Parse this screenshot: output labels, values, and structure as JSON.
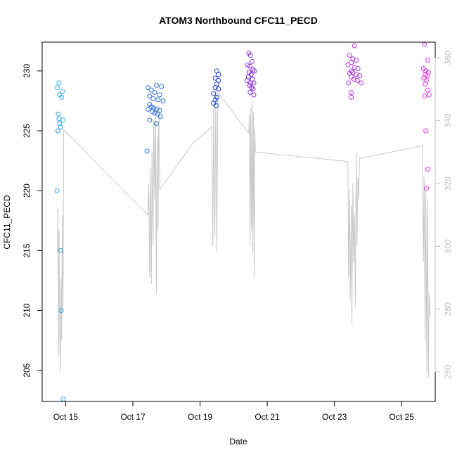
{
  "chart_data": {
    "type": "scatter",
    "title": "ATOM3 Northbound CFC11_PECD",
    "xlabel": "Date",
    "ylabel": "CFC11_PECD",
    "x_ticks": [
      "Oct 15",
      "Oct 17",
      "Oct 19",
      "Oct 21",
      "Oct 23",
      "Oct 25"
    ],
    "x_tick_days": [
      15,
      17,
      19,
      21,
      23,
      25
    ],
    "xlim": [
      14.3,
      26.0
    ],
    "ylim": [
      202.4,
      232.4
    ],
    "y_ticks": [
      205,
      210,
      215,
      220,
      225,
      230
    ],
    "y2lim": [
      250.6,
      365.0
    ],
    "y2_ticks": [
      260,
      280,
      300,
      320,
      340,
      360
    ],
    "line_color": "#c8c8c8",
    "series": [
      {
        "color": "#2fa5f0",
        "points": [
          [
            14.8,
            229.0
          ],
          [
            14.75,
            228.6
          ],
          [
            14.9,
            228.3
          ],
          [
            14.82,
            228.0
          ],
          [
            14.88,
            227.8
          ],
          [
            14.78,
            226.4
          ],
          [
            14.8,
            226.0
          ],
          [
            14.92,
            225.9
          ],
          [
            14.82,
            225.6
          ],
          [
            14.85,
            225.3
          ],
          [
            14.77,
            225.0
          ],
          [
            14.74,
            220.0
          ],
          [
            14.85,
            215.0
          ],
          [
            14.87,
            210.0
          ],
          [
            14.93,
            202.6
          ]
        ]
      },
      {
        "color": "#2e6fe0",
        "points": [
          [
            17.45,
            228.6
          ],
          [
            17.7,
            228.8
          ],
          [
            17.85,
            228.7
          ],
          [
            17.55,
            228.4
          ],
          [
            17.65,
            228.2
          ],
          [
            17.8,
            228.0
          ],
          [
            17.5,
            227.9
          ],
          [
            17.6,
            227.7
          ],
          [
            17.75,
            227.6
          ],
          [
            17.9,
            227.5
          ],
          [
            17.5,
            227.2
          ],
          [
            17.55,
            227.0
          ],
          [
            17.62,
            226.9
          ],
          [
            17.7,
            226.8
          ],
          [
            17.8,
            226.7
          ],
          [
            17.45,
            226.8
          ],
          [
            17.58,
            226.6
          ],
          [
            17.66,
            226.5
          ],
          [
            17.74,
            226.4
          ],
          [
            17.82,
            226.2
          ],
          [
            17.5,
            225.9
          ],
          [
            17.7,
            225.6
          ],
          [
            17.42,
            223.3
          ]
        ]
      },
      {
        "color": "#1a3dd6",
        "points": [
          [
            19.5,
            230.0
          ],
          [
            19.55,
            229.7
          ],
          [
            19.45,
            229.4
          ],
          [
            19.55,
            229.2
          ],
          [
            19.5,
            228.9
          ],
          [
            19.45,
            228.6
          ],
          [
            19.55,
            228.5
          ],
          [
            19.4,
            228.1
          ],
          [
            19.5,
            227.8
          ],
          [
            19.45,
            227.6
          ],
          [
            19.4,
            227.3
          ],
          [
            19.48,
            227.1
          ]
        ]
      },
      {
        "color": "#8a2be2",
        "points": [
          [
            20.45,
            231.5
          ],
          [
            20.5,
            231.3
          ],
          [
            20.55,
            230.8
          ],
          [
            20.42,
            230.5
          ],
          [
            20.48,
            230.4
          ],
          [
            20.58,
            230.1
          ],
          [
            20.62,
            230.0
          ],
          [
            20.46,
            229.9
          ],
          [
            20.52,
            229.7
          ],
          [
            20.44,
            229.5
          ],
          [
            20.56,
            229.3
          ],
          [
            20.4,
            229.2
          ],
          [
            20.5,
            229.0
          ],
          [
            20.6,
            229.0
          ],
          [
            20.47,
            228.8
          ],
          [
            20.53,
            228.6
          ],
          [
            20.58,
            228.5
          ],
          [
            20.49,
            228.2
          ],
          [
            20.6,
            228.0
          ]
        ]
      },
      {
        "color": "#b233e8",
        "points": [
          [
            23.6,
            232.1
          ],
          [
            23.45,
            231.3
          ],
          [
            23.55,
            231.0
          ],
          [
            23.65,
            230.9
          ],
          [
            23.5,
            230.7
          ],
          [
            23.4,
            230.5
          ],
          [
            23.6,
            230.3
          ],
          [
            23.7,
            230.2
          ],
          [
            23.5,
            230.0
          ],
          [
            23.55,
            229.9
          ],
          [
            23.45,
            229.8
          ],
          [
            23.65,
            229.7
          ],
          [
            23.75,
            229.6
          ],
          [
            23.5,
            229.5
          ],
          [
            23.58,
            229.3
          ],
          [
            23.68,
            229.2
          ],
          [
            23.42,
            229.0
          ],
          [
            23.8,
            229.0
          ],
          [
            23.5,
            228.2
          ],
          [
            23.5,
            227.8
          ]
        ]
      },
      {
        "color": "#e030e8",
        "points": [
          [
            25.68,
            232.2
          ],
          [
            25.78,
            230.9
          ],
          [
            25.65,
            230.2
          ],
          [
            25.72,
            230.0
          ],
          [
            25.8,
            229.9
          ],
          [
            25.7,
            229.7
          ],
          [
            25.76,
            229.6
          ],
          [
            25.66,
            229.4
          ],
          [
            25.74,
            229.2
          ],
          [
            25.7,
            228.9
          ],
          [
            25.78,
            228.4
          ],
          [
            25.82,
            228.0
          ],
          [
            25.68,
            227.9
          ],
          [
            25.72,
            225.0
          ],
          [
            25.78,
            221.8
          ],
          [
            25.74,
            220.2
          ]
        ]
      }
    ],
    "line_series": {
      "axis": "right",
      "x": [
        14.75,
        14.77,
        14.79,
        14.8,
        14.82,
        14.84,
        14.86,
        14.88,
        14.9,
        14.92,
        14.94,
        17.45,
        17.47,
        17.5,
        17.52,
        17.55,
        17.57,
        17.6,
        17.62,
        17.65,
        17.67,
        17.7,
        17.72,
        17.75,
        17.77,
        17.8,
        18.8,
        19.35,
        19.38,
        19.41,
        19.44,
        19.47,
        19.5,
        19.53,
        20.45,
        20.47,
        20.49,
        20.51,
        20.53,
        20.55,
        20.57,
        20.59,
        20.61,
        20.63,
        20.65,
        23.4,
        23.42,
        23.45,
        23.47,
        23.5,
        23.52,
        23.55,
        23.57,
        23.6,
        23.62,
        23.65,
        23.67,
        23.7,
        23.72,
        23.75,
        25.62,
        25.65,
        25.67,
        25.7,
        25.72,
        25.75,
        25.77,
        25.8,
        25.82,
        25.85
      ],
      "y": [
        298,
        312,
        265,
        305,
        275,
        260,
        290,
        270,
        310,
        280,
        337,
        310,
        320,
        290,
        325,
        288,
        330,
        300,
        340,
        315,
        345,
        285,
        335,
        305,
        345,
        318,
        333,
        338,
        300,
        346,
        303,
        350,
        298,
        349,
        336,
        342,
        300,
        344,
        305,
        347,
        298,
        343,
        290,
        338,
        330,
        327,
        290,
        318,
        283,
        313,
        275,
        320,
        295,
        310,
        281,
        330,
        300,
        322,
        315,
        328,
        332,
        295,
        322,
        270,
        318,
        260,
        315,
        258,
        285,
        278
      ]
    }
  }
}
